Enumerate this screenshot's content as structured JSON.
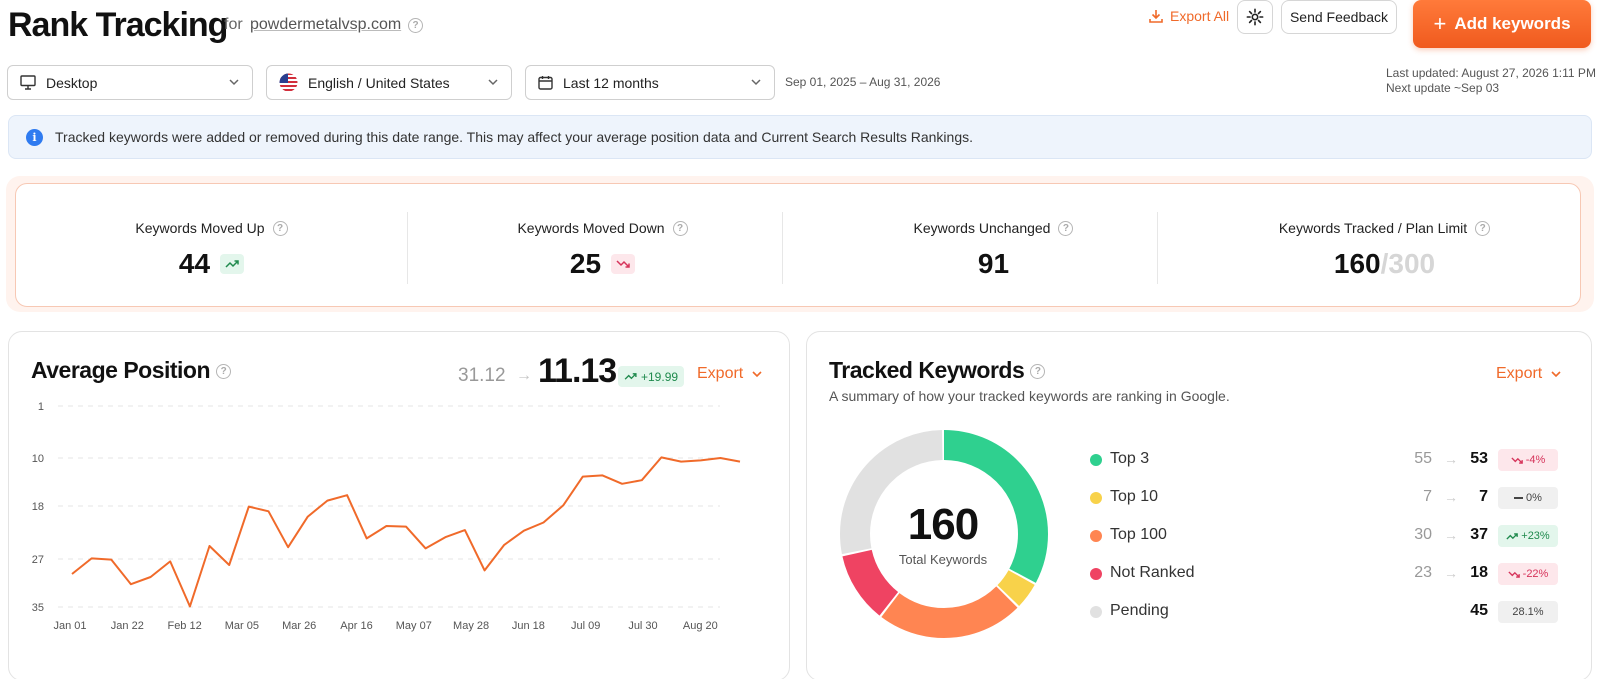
{
  "header": {
    "title": "Rank Tracking",
    "for_label": "for",
    "domain": "powdermetalvsp.com",
    "export_all": "Export All",
    "send_feedback": "Send Feedback",
    "add_keywords": "Add keywords"
  },
  "filters": {
    "device": "Desktop",
    "language": "English / United States",
    "period": "Last 12 months",
    "date_range": "Sep 01, 2025 – Aug 31, 2026",
    "last_updated": "Last updated: August 27, 2026 1:11 PM",
    "next_update": "Next update ~Sep 03"
  },
  "banner": {
    "text": "Tracked keywords were added or removed during this date range. This may affect your average position data and Current Search Results Rankings."
  },
  "stats": {
    "moved_up": {
      "label": "Keywords Moved Up",
      "value": "44"
    },
    "moved_down": {
      "label": "Keywords Moved Down",
      "value": "25"
    },
    "unchanged": {
      "label": "Keywords Unchanged",
      "value": "91"
    },
    "tracked": {
      "label": "Keywords Tracked / Plan Limit",
      "value": "160",
      "limit": "/300"
    }
  },
  "avg_position": {
    "title": "Average Position",
    "from": "31.12",
    "to": "11.13",
    "delta": "+19.99",
    "export": "Export"
  },
  "chart_data": {
    "type": "line",
    "y_inverted": true,
    "yticks": [
      "1",
      "10",
      "18",
      "27",
      "35"
    ],
    "ylim": [
      1,
      35
    ],
    "xticks": [
      "Jan 01",
      "Jan 22",
      "Feb 12",
      "Mar 05",
      "Mar 26",
      "Apr 16",
      "May 07",
      "May 28",
      "Jun 18",
      "Jul 09",
      "Jul 30",
      "Aug 20"
    ],
    "series": [
      {
        "values": [
          29.5,
          26.9,
          27.1,
          31.2,
          30.0,
          27.4,
          34.9,
          24.8,
          28.0,
          18.1,
          18.9,
          25.0,
          19.8,
          17.1,
          16.2,
          23.5,
          21.4,
          21.5,
          25.2,
          23.3,
          22.1,
          28.9,
          24.6,
          22.2,
          20.8,
          17.9,
          13.1,
          12.9,
          14.3,
          13.7,
          9.9,
          10.6,
          10.4,
          10.0,
          10.6
        ]
      }
    ]
  },
  "tracked_keywords": {
    "title": "Tracked Keywords",
    "subtitle": "A summary of how your tracked keywords are ranking in Google.",
    "export": "Export",
    "total": "160",
    "total_label": "Total Keywords",
    "rows": [
      {
        "name": "Top 3",
        "from": "55",
        "to": "53",
        "badge": "-4%",
        "trend": "down",
        "color": "#2fd08f",
        "value": 53
      },
      {
        "name": "Top 10",
        "from": "7",
        "to": "7",
        "badge": "0%",
        "trend": "flat",
        "color": "#f8d24a",
        "value": 7
      },
      {
        "name": "Top 100",
        "from": "30",
        "to": "37",
        "badge": "+23%",
        "trend": "up",
        "color": "#ff8552",
        "value": 37
      },
      {
        "name": "Not Ranked",
        "from": "23",
        "to": "18",
        "badge": "-22%",
        "trend": "down",
        "color": "#ef4362",
        "value": 18
      },
      {
        "name": "Pending",
        "from": "",
        "to": "45",
        "badge": "28.1%",
        "trend": "none",
        "color": "#e1e1e1",
        "value": 45
      }
    ]
  }
}
